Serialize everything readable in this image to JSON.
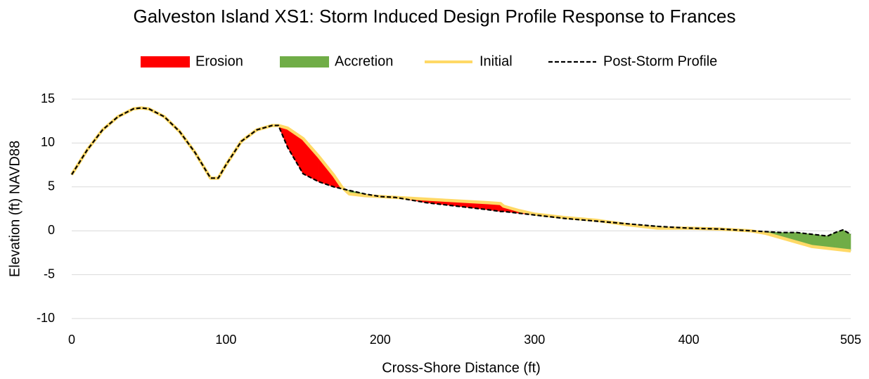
{
  "chart_data": {
    "type": "line",
    "title": "Galveston Island XS1: Storm Induced Design Profile Response to Frances",
    "x_label": "Cross-Shore Distance (ft)",
    "y_label": "Elevation (ft) NAVD88",
    "x": [
      0,
      10,
      20,
      30,
      40,
      45,
      50,
      60,
      70,
      80,
      90,
      95,
      100,
      110,
      120,
      130,
      134,
      140,
      150,
      160,
      170,
      175,
      180,
      190,
      200,
      210,
      220,
      230,
      240,
      250,
      260,
      270,
      278,
      280,
      290,
      300,
      320,
      340,
      360,
      380,
      400,
      420,
      440,
      450,
      460,
      470,
      480,
      490,
      495,
      500,
      505
    ],
    "series": [
      {
        "name": "Erosion",
        "color": "#ff0000"
      },
      {
        "name": "Accretion",
        "color": "#70ad47"
      },
      {
        "name": "Initial",
        "color": "#ffd966",
        "values": [
          6.4,
          9.2,
          11.5,
          13.0,
          13.9,
          14.0,
          13.9,
          13.0,
          11.3,
          8.9,
          6.0,
          6.0,
          7.5,
          10.2,
          11.5,
          12.0,
          12.0,
          11.7,
          10.5,
          8.5,
          6.3,
          5.0,
          4.2,
          4.0,
          3.9,
          3.8,
          3.7,
          3.6,
          3.5,
          3.4,
          3.3,
          3.2,
          3.1,
          2.8,
          2.3,
          1.9,
          1.5,
          1.2,
          0.7,
          0.3,
          0.3,
          0.2,
          0.0,
          -0.3,
          -0.8,
          -1.3,
          -1.8,
          -2.0,
          -2.1,
          -2.2,
          -2.3
        ]
      },
      {
        "name": "Post-Storm Profile",
        "color": "#000000",
        "values": [
          6.4,
          9.2,
          11.5,
          13.0,
          13.9,
          14.0,
          13.9,
          13.0,
          11.3,
          8.9,
          6.0,
          6.0,
          7.5,
          10.2,
          11.5,
          12.0,
          12.0,
          9.5,
          6.5,
          5.6,
          5.0,
          4.8,
          4.6,
          4.2,
          3.9,
          3.8,
          3.5,
          3.2,
          3.0,
          2.8,
          2.6,
          2.4,
          2.2,
          2.2,
          2.0,
          1.8,
          1.4,
          1.1,
          0.8,
          0.5,
          0.3,
          0.2,
          0.0,
          -0.1,
          -0.2,
          -0.2,
          -0.4,
          -0.6,
          -0.2,
          0.1,
          -0.4
        ]
      }
    ],
    "xlim": [
      0,
      505
    ],
    "xticks": [
      0,
      100,
      200,
      300,
      400,
      505
    ],
    "ylim": [
      -10,
      15
    ],
    "yticks": [
      -10,
      -5,
      0,
      5,
      10,
      15
    ],
    "grid": true,
    "legend": "top"
  }
}
